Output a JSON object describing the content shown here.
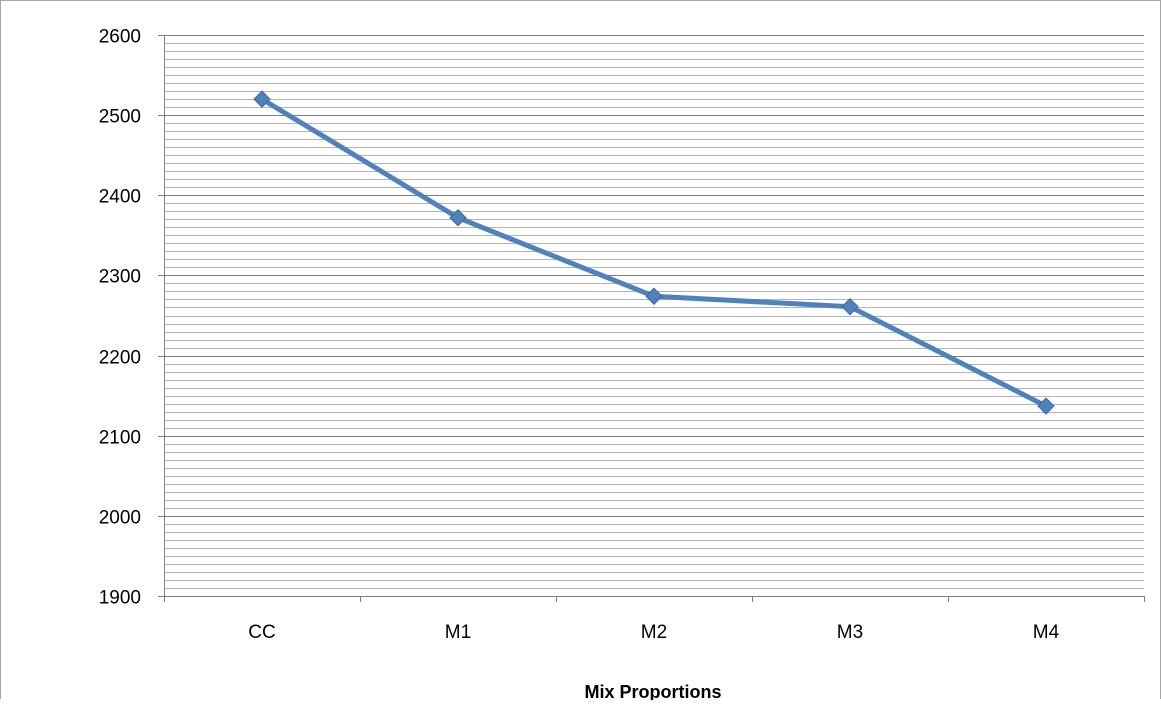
{
  "chart_data": {
    "type": "line",
    "title": "",
    "xlabel": "Mix Proportions",
    "ylabel": "",
    "categories": [
      "CC",
      "M1",
      "M2",
      "M3",
      "M4"
    ],
    "series": [
      {
        "values": [
          2520,
          2372,
          2274,
          2261,
          2137
        ],
        "color": "#4f81bd",
        "marker": "diamond"
      }
    ],
    "ylim": [
      1900,
      2600
    ],
    "yticks": [
      1900,
      2000,
      2100,
      2200,
      2300,
      2400,
      2500,
      2600
    ],
    "minor_grid_step": 10,
    "grid": true,
    "legend": "none"
  }
}
